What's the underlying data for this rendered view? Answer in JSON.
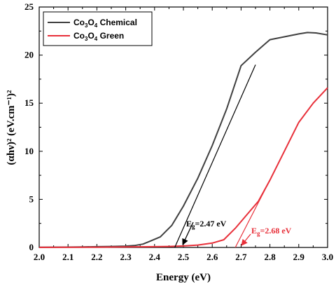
{
  "chart_data": {
    "type": "line",
    "xlabel": "Energy (eV)",
    "ylabel": "(αhν)² (eV.cm⁻¹)²",
    "xlim": [
      2.0,
      3.0
    ],
    "ylim": [
      0,
      25
    ],
    "xticks": [
      "2.0",
      "2.1",
      "2.2",
      "2.3",
      "2.4",
      "2.5",
      "2.6",
      "2.7",
      "2.8",
      "2.9",
      "3.0"
    ],
    "yticks": [
      "0",
      "5",
      "10",
      "15",
      "20",
      "25"
    ],
    "legend_position": "top-left",
    "grid": false,
    "series": [
      {
        "name": "Co3O4 Chemical",
        "color": "#404040",
        "x": [
          2.0,
          2.05,
          2.1,
          2.15,
          2.2,
          2.25,
          2.3,
          2.33,
          2.36,
          2.38,
          2.42,
          2.46,
          2.5,
          2.55,
          2.6,
          2.65,
          2.7,
          2.75,
          2.8,
          2.85,
          2.9,
          2.93,
          2.96,
          3.0
        ],
        "y": [
          0.02,
          0.03,
          0.04,
          0.06,
          0.08,
          0.1,
          0.14,
          0.2,
          0.35,
          0.6,
          1.1,
          2.3,
          4.3,
          7.2,
          10.6,
          14.4,
          18.9,
          20.3,
          21.6,
          21.9,
          22.2,
          22.35,
          22.3,
          22.1
        ]
      },
      {
        "name": "Co3O4 Green",
        "color": "#e8303a",
        "x": [
          2.0,
          2.1,
          2.2,
          2.3,
          2.4,
          2.45,
          2.5,
          2.55,
          2.6,
          2.64,
          2.68,
          2.72,
          2.76,
          2.8,
          2.85,
          2.9,
          2.95,
          3.0
        ],
        "y": [
          0.01,
          0.02,
          0.03,
          0.05,
          0.08,
          0.1,
          0.15,
          0.25,
          0.45,
          0.8,
          2.0,
          3.4,
          4.8,
          7.0,
          10.0,
          13.0,
          15.0,
          16.6
        ]
      }
    ],
    "tangents": [
      {
        "x": [
          2.47,
          2.75
        ],
        "y": [
          0,
          19.0
        ],
        "color": "#000000"
      },
      {
        "x": [
          2.68,
          2.8
        ],
        "y": [
          0,
          7.0
        ],
        "color": "#e8303a"
      }
    ],
    "annotations": [
      {
        "label_main": "E",
        "label_sub": "g",
        "label_value": "=2.47 eV",
        "color": "#000000",
        "arrow_to_x": 2.47,
        "arrow_to_y": 0
      },
      {
        "label_main": "E",
        "label_sub": "g",
        "label_value": "=2.68 eV",
        "color": "#e8303a",
        "arrow_to_x": 2.68,
        "arrow_to_y": 0
      }
    ]
  }
}
